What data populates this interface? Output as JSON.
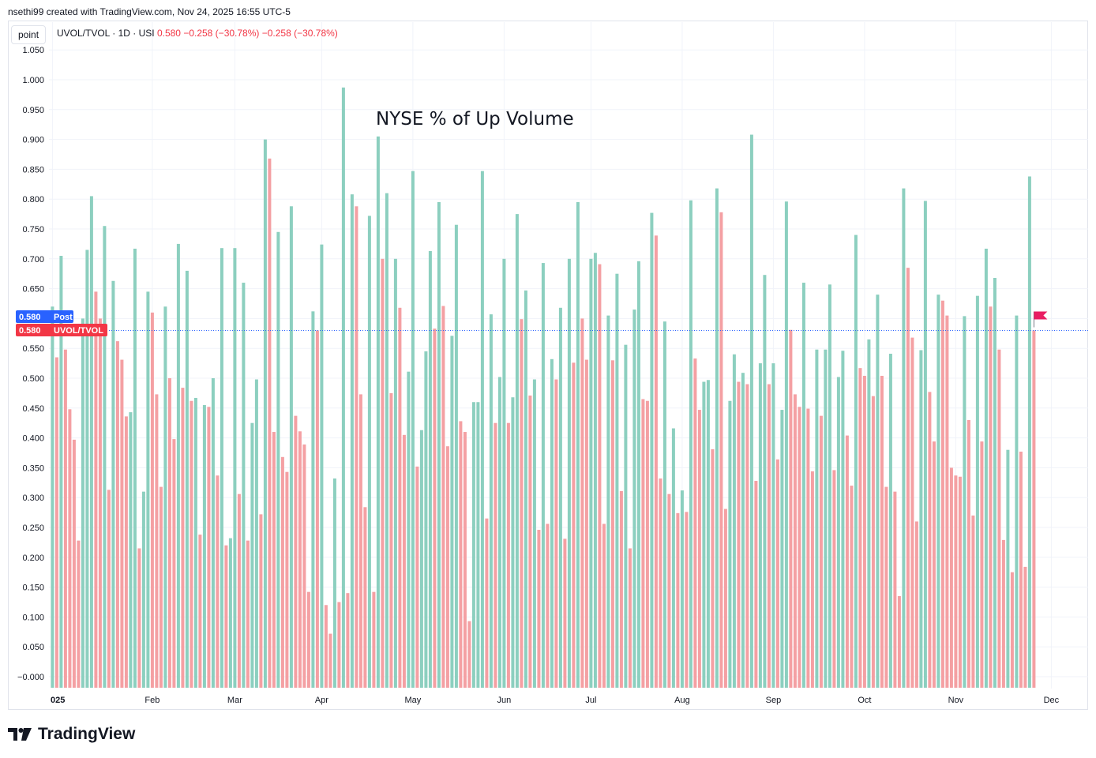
{
  "header": {
    "credit": "nsethi99 created with TradingView.com, Nov 24, 2025 16:55 UTC-5"
  },
  "toolbar": {
    "point_label": "point"
  },
  "legend": {
    "symbol": "UVOL/TVOL · 1D · USI",
    "value": "0.580",
    "change": "−0.258 (−30.78%)",
    "change2": "−0.258 (−30.78%)"
  },
  "badges": {
    "post_value": "0.580",
    "post_label": "Post",
    "last_value": "0.580",
    "last_label": "UVOL/TVOL"
  },
  "brand": {
    "name": "TradingView"
  },
  "colors": {
    "up": "#8ccfbf",
    "down": "#f4a0a3",
    "post": "#2962ff",
    "last": "#f23645",
    "flag": "#e91e63"
  },
  "chart_data": {
    "type": "bar",
    "title": "NYSE % of Up Volume",
    "symbol": "UVOL/TVOL",
    "ylim": [
      -0.02,
      1.05
    ],
    "y_ticks": [
      1.05,
      1.0,
      0.95,
      0.9,
      0.85,
      0.8,
      0.75,
      0.7,
      0.65,
      0.6,
      0.55,
      0.5,
      0.45,
      0.4,
      0.35,
      0.3,
      0.25,
      0.2,
      0.15,
      0.1,
      0.05,
      -0.0
    ],
    "y_tick_labels": [
      "1.050",
      "1.000",
      "0.950",
      "0.900",
      "0.850",
      "0.800",
      "0.750",
      "0.700",
      "0.650",
      "0.600",
      "0.550",
      "0.500",
      "0.450",
      "0.400",
      "0.350",
      "0.300",
      "0.250",
      "0.200",
      "0.150",
      "0.100",
      "0.050",
      "−0.000"
    ],
    "x_labels": [
      "025",
      "Feb",
      "Mar",
      "Apr",
      "May",
      "Jun",
      "Jul",
      "Aug",
      "Sep",
      "Oct",
      "Nov",
      "Dec"
    ],
    "x_label_bars": [
      0,
      23,
      42,
      62,
      83,
      104,
      124,
      145,
      166,
      187,
      208,
      230
    ],
    "last_value": 0.58,
    "values": [
      0.62,
      0.535,
      0.705,
      0.548,
      0.448,
      0.397,
      0.228,
      0.6,
      0.715,
      0.805,
      0.645,
      0.6,
      0.755,
      0.313,
      0.663,
      0.562,
      0.531,
      0.436,
      0.443,
      0.717,
      0.215,
      0.31,
      0.645,
      0.61,
      0.473,
      0.318,
      0.62,
      0.5,
      0.398,
      0.725,
      0.484,
      0.68,
      0.462,
      0.467,
      0.238,
      0.455,
      0.452,
      0.5,
      0.337,
      0.718,
      0.22,
      0.232,
      0.718,
      0.306,
      0.66,
      0.228,
      0.425,
      0.498,
      0.272,
      0.9,
      0.868,
      0.41,
      0.745,
      0.368,
      0.343,
      0.788,
      0.437,
      0.411,
      0.389,
      0.142,
      0.612,
      0.58,
      0.724,
      0.12,
      0.072,
      0.332,
      0.125,
      0.987,
      0.14,
      0.808,
      0.788,
      0.473,
      0.284,
      0.772,
      0.142,
      0.905,
      0.7,
      0.81,
      0.475,
      0.7,
      0.618,
      0.405,
      0.511,
      0.847,
      0.352,
      0.413,
      0.545,
      0.713,
      0.583,
      0.795,
      0.621,
      0.386,
      0.571,
      0.757,
      0.428,
      0.41,
      0.093,
      0.46,
      0.46,
      0.847,
      0.265,
      0.607,
      0.425,
      0.502,
      0.7,
      0.425,
      0.468,
      0.775,
      0.599,
      0.647,
      0.471,
      0.498,
      0.246,
      0.693,
      0.256,
      0.532,
      0.498,
      0.618,
      0.231,
      0.7,
      0.526,
      0.795,
      0.6,
      0.531,
      0.7,
      0.71,
      0.691,
      0.256,
      0.605,
      0.53,
      0.675,
      0.311,
      0.556,
      0.215,
      0.615,
      0.696,
      0.465,
      0.462,
      0.777,
      0.739,
      0.332,
      0.595,
      0.306,
      0.416,
      0.274,
      0.312,
      0.276,
      0.798,
      0.533,
      0.447,
      0.494,
      0.497,
      0.381,
      0.818,
      0.778,
      0.281,
      0.462,
      0.54,
      0.494,
      0.509,
      0.49,
      0.908,
      0.328,
      0.525,
      0.673,
      0.49,
      0.525,
      0.364,
      0.447,
      0.796,
      0.581,
      0.473,
      0.452,
      0.66,
      0.449,
      0.344,
      0.548,
      0.437,
      0.548,
      0.657,
      0.346,
      0.502,
      0.546,
      0.404,
      0.32,
      0.74,
      0.517,
      0.504,
      0.565,
      0.47,
      0.64,
      0.504,
      0.318,
      0.541,
      0.31,
      0.135,
      0.818,
      0.685,
      0.568,
      0.26,
      0.547,
      0.797,
      0.477,
      0.394,
      0.64,
      0.63,
      0.605,
      0.35,
      0.337,
      0.335,
      0.604,
      0.43,
      0.27,
      0.638,
      0.394,
      0.717,
      0.62,
      0.668,
      0.548,
      0.229,
      0.38,
      0.175,
      0.605,
      0.377,
      0.184,
      0.838,
      0.58
    ]
  }
}
